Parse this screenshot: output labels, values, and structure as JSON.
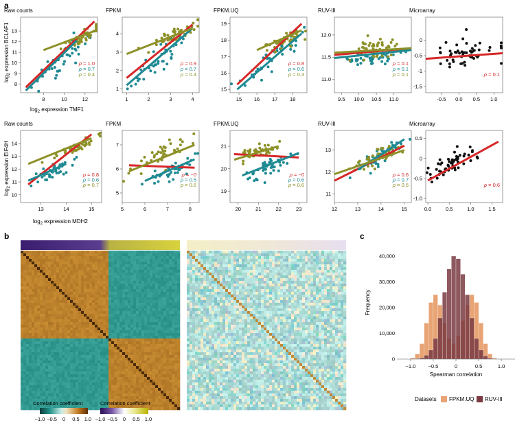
{
  "panel_labels": {
    "a": "a",
    "b": "b",
    "c": "c"
  },
  "colors": {
    "red": "#d62728",
    "teal": "#1f8a93",
    "olive": "#8d9128",
    "black": "#111111",
    "fpkm_uq": "#e8a474",
    "ruv": "#7a3b42"
  },
  "rho_symbol": "ρ",
  "row1_ylabel_main": "log",
  "row1_ylabel_sub": "2",
  "row1_ylabel_rest": " expression BCLAF1",
  "row1_xlabel_main": "log",
  "row1_xlabel_sub": "2",
  "row1_xlabel_rest": " expression TMF1",
  "row2_ylabel_main": "log",
  "row2_ylabel_sub": "2",
  "row2_ylabel_rest": " expression EIF4H",
  "row2_xlabel_main": "log",
  "row2_xlabel_sub": "2",
  "row2_xlabel_rest": " expression MDH2",
  "chart_data": [
    {
      "type": "scatter",
      "panel": "a1",
      "title": "Raw counts",
      "xlim": [
        5.8,
        13.2
      ],
      "ylim": [
        7.2,
        14.3
      ],
      "xticks": [
        "8",
        "10",
        "12"
      ],
      "xtick_vals": [
        8,
        10,
        12
      ],
      "yticks": [
        "8",
        "9",
        "10",
        "11",
        "12",
        "13"
      ],
      "ytick_vals": [
        8,
        9,
        10,
        11,
        12,
        13
      ],
      "series": [
        {
          "name": "red",
          "color": "red",
          "line": [
            [
              6.3,
              7.7
            ],
            [
              12.9,
              13.9
            ]
          ],
          "rho": "= 1.0"
        },
        {
          "name": "teal",
          "color": "teal",
          "line": [
            [
              6.3,
              7.4
            ],
            [
              11.2,
              12.1
            ]
          ],
          "rho": "= 0.7",
          "cloud": {
            "cx": 9.8,
            "cy": 10.4,
            "sx": 1.3,
            "sy": 1.3,
            "slope": 0.95,
            "n": 45
          }
        },
        {
          "name": "olive",
          "color": "olive",
          "line": [
            [
              8.0,
              11.2
            ],
            [
              12.9,
              13.0
            ]
          ],
          "rho": "= 0.4",
          "cloud": {
            "cx": 11.4,
            "cy": 12.2,
            "sx": 0.9,
            "sy": 0.6,
            "slope": 0.5,
            "n": 45
          }
        }
      ]
    },
    {
      "type": "scatter",
      "panel": "a2",
      "title": "FPKM",
      "xlim": [
        0.8,
        4.3
      ],
      "ylim": [
        0.8,
        4.9
      ],
      "xticks": [
        "1",
        "2",
        "3",
        "4"
      ],
      "xtick_vals": [
        1,
        2,
        3,
        4
      ],
      "yticks": [
        "1",
        "2",
        "3",
        "4"
      ],
      "ytick_vals": [
        1,
        2,
        3,
        4
      ],
      "series": [
        {
          "name": "red",
          "color": "red",
          "line": [
            [
              1.0,
              1.6
            ],
            [
              4.0,
              4.5
            ]
          ],
          "rho": "= 0.9"
        },
        {
          "name": "teal",
          "color": "teal",
          "line": [
            [
              1.0,
              1.2
            ],
            [
              4.0,
              4.3
            ]
          ],
          "rho": "= 0.7",
          "cloud": {
            "cx": 2.4,
            "cy": 2.6,
            "sx": 0.7,
            "sy": 0.7,
            "slope": 1.0,
            "n": 45
          }
        },
        {
          "name": "olive",
          "color": "olive",
          "line": [
            [
              1.0,
              2.9
            ],
            [
              4.0,
              4.3
            ]
          ],
          "rho": "= 0.4",
          "cloud": {
            "cx": 3.2,
            "cy": 3.9,
            "sx": 0.6,
            "sy": 0.4,
            "slope": 0.5,
            "n": 45
          }
        }
      ]
    },
    {
      "type": "scatter",
      "panel": "a3",
      "title": "FPKM.UQ",
      "xlim": [
        14.5,
        18.8
      ],
      "ylim": [
        14.8,
        19.4
      ],
      "xticks": [
        "15",
        "16",
        "17",
        "18"
      ],
      "xtick_vals": [
        15,
        16,
        17,
        18
      ],
      "yticks": [
        "15",
        "16",
        "17",
        "18",
        "19"
      ],
      "ytick_vals": [
        15,
        16,
        17,
        18,
        19
      ],
      "series": [
        {
          "name": "red",
          "color": "red",
          "line": [
            [
              14.9,
              15.3
            ],
            [
              18.5,
              19.0
            ]
          ],
          "rho": "= 0.8"
        },
        {
          "name": "teal",
          "color": "teal",
          "line": [
            [
              14.9,
              15.0
            ],
            [
              18.5,
              18.4
            ]
          ],
          "rho": "= 0.6",
          "cloud": {
            "cx": 16.7,
            "cy": 16.8,
            "sx": 0.8,
            "sy": 0.8,
            "slope": 0.9,
            "n": 45
          }
        },
        {
          "name": "olive",
          "color": "olive",
          "line": [
            [
              16.0,
              17.4
            ],
            [
              18.5,
              18.6
            ]
          ],
          "rho": "= 0.3",
          "cloud": {
            "cx": 17.6,
            "cy": 18.0,
            "sx": 0.6,
            "sy": 0.4,
            "slope": 0.4,
            "n": 45
          }
        }
      ]
    },
    {
      "type": "scatter",
      "panel": "a4",
      "title": "RUV-III",
      "xlim": [
        9.3,
        11.5
      ],
      "ylim": [
        10.7,
        12.4
      ],
      "xticks": [
        "9.5",
        "10.0",
        "10.5",
        "11.0"
      ],
      "xtick_vals": [
        9.5,
        10.0,
        10.5,
        11.0
      ],
      "yticks": [
        "11.0",
        "11.5",
        "12.0"
      ],
      "ytick_vals": [
        11.0,
        11.5,
        12.0
      ],
      "series": [
        {
          "name": "red",
          "color": "red",
          "line": [
            [
              9.3,
              11.55
            ],
            [
              11.5,
              11.7
            ]
          ],
          "rho": "= 0.1"
        },
        {
          "name": "teal",
          "color": "teal",
          "line": [
            [
              9.3,
              11.48
            ],
            [
              11.5,
              11.66
            ]
          ],
          "rho": "= 0.1",
          "cloud": {
            "cx": 10.4,
            "cy": 11.5,
            "sx": 0.35,
            "sy": 0.2,
            "slope": 0.1,
            "n": 45
          }
        },
        {
          "name": "olive",
          "color": "olive",
          "line": [
            [
              9.3,
              11.6
            ],
            [
              11.5,
              11.7
            ]
          ],
          "rho": "= 0.1",
          "cloud": {
            "cx": 10.5,
            "cy": 11.7,
            "sx": 0.35,
            "sy": 0.25,
            "slope": 0.1,
            "n": 55
          }
        }
      ]
    },
    {
      "type": "scatter",
      "panel": "a5",
      "title": "Microarray",
      "xlim": [
        -0.95,
        1.25
      ],
      "ylim": [
        -1.7,
        0.75
      ],
      "xticks": [
        "-0.5",
        "0.0",
        "0.5",
        "1.0"
      ],
      "xtick_vals": [
        -0.5,
        0.0,
        0.5,
        1.0
      ],
      "yticks": [
        "-1.5",
        "-1",
        "-0.5",
        "0"
      ],
      "ytick_vals": [
        -1.5,
        -1,
        -0.5,
        0
      ],
      "series": [
        {
          "name": "red",
          "color": "red",
          "line": [
            [
              -0.95,
              -0.6
            ],
            [
              1.25,
              -0.42
            ]
          ],
          "rho": "= 0.1"
        },
        {
          "name": "black",
          "color": "black",
          "cloud": {
            "cx": 0.2,
            "cy": -0.45,
            "sx": 0.4,
            "sy": 0.45,
            "slope": 0.1,
            "n": 55
          }
        }
      ]
    },
    {
      "type": "scatter",
      "panel": "a6",
      "title": "Raw counts",
      "xlim": [
        12.2,
        15.4
      ],
      "ylim": [
        9.4,
        15.0
      ],
      "xticks": [
        "13",
        "14",
        "15"
      ],
      "xtick_vals": [
        13,
        14,
        15
      ],
      "yticks": [
        "10",
        "11",
        "12",
        "13",
        "14"
      ],
      "ytick_vals": [
        10,
        11,
        12,
        13,
        14
      ],
      "series": [
        {
          "name": "red",
          "color": "red",
          "line": [
            [
              12.5,
              10.8
            ],
            [
              15.0,
              14.7
            ]
          ],
          "rho": "= 0.8"
        },
        {
          "name": "teal",
          "color": "teal",
          "line": [
            [
              12.5,
              11.1
            ],
            [
              14.0,
              12.4
            ]
          ],
          "rho": "= 0.6",
          "cloud": {
            "cx": 13.3,
            "cy": 11.6,
            "sx": 0.4,
            "sy": 0.5,
            "slope": 0.9,
            "n": 45
          }
        },
        {
          "name": "olive",
          "color": "olive",
          "line": [
            [
              12.5,
              12.4
            ],
            [
              15.0,
              14.4
            ]
          ],
          "rho": "= 0.7",
          "cloud": {
            "cx": 14.3,
            "cy": 13.6,
            "sx": 0.5,
            "sy": 0.4,
            "slope": 0.8,
            "n": 45
          }
        }
      ]
    },
    {
      "type": "scatter",
      "panel": "a7",
      "title": "FPKM",
      "xlim": [
        5.0,
        8.4
      ],
      "ylim": [
        4.6,
        7.6
      ],
      "xticks": [
        "5",
        "6",
        "7",
        "8"
      ],
      "xtick_vals": [
        5,
        6,
        7,
        8
      ],
      "yticks": [
        "5",
        "6",
        "7"
      ],
      "ytick_vals": [
        5,
        6,
        7
      ],
      "series": [
        {
          "name": "red",
          "color": "red",
          "line": [
            [
              5.3,
              6.15
            ],
            [
              8.2,
              6.05
            ]
          ],
          "rho": "= −0"
        },
        {
          "name": "teal",
          "color": "teal",
          "line": [
            [
              6.0,
              5.5
            ],
            [
              8.2,
              6.4
            ]
          ],
          "rho": "= 0.5",
          "cloud": {
            "cx": 7.2,
            "cy": 5.9,
            "sx": 0.5,
            "sy": 0.35,
            "slope": 0.4,
            "n": 45
          }
        },
        {
          "name": "olive",
          "color": "olive",
          "line": [
            [
              5.3,
              5.9
            ],
            [
              8.2,
              7.0
            ]
          ],
          "rho": "= 0.6",
          "cloud": {
            "cx": 6.8,
            "cy": 6.6,
            "sx": 0.6,
            "sy": 0.4,
            "slope": 0.5,
            "n": 45
          }
        }
      ]
    },
    {
      "type": "scatter",
      "panel": "a8",
      "title": "FPKM.UQ",
      "xlim": [
        19.6,
        23.4
      ],
      "ylim": [
        18.5,
        21.7
      ],
      "xticks": [
        "20",
        "21",
        "22",
        "23"
      ],
      "xtick_vals": [
        20,
        21,
        22,
        23
      ],
      "yticks": [
        "19",
        "20",
        "21"
      ],
      "ytick_vals": [
        19,
        20,
        21
      ],
      "series": [
        {
          "name": "red",
          "color": "red",
          "line": [
            [
              19.8,
              20.65
            ],
            [
              23.0,
              20.5
            ]
          ],
          "rho": "= −0"
        },
        {
          "name": "teal",
          "color": "teal",
          "line": [
            [
              20.2,
              19.7
            ],
            [
              23.0,
              20.7
            ]
          ],
          "rho": "= 0.6",
          "cloud": {
            "cx": 21.5,
            "cy": 20.1,
            "sx": 0.7,
            "sy": 0.4,
            "slope": 0.4,
            "n": 45
          }
        },
        {
          "name": "olive",
          "color": "olive",
          "line": [
            [
              19.8,
              20.4
            ],
            [
              22.0,
              21.0
            ]
          ],
          "rho": "= 0.6",
          "cloud": {
            "cx": 21.2,
            "cy": 20.8,
            "sx": 0.6,
            "sy": 0.3,
            "slope": 0.3,
            "n": 45
          }
        }
      ]
    },
    {
      "type": "scatter",
      "panel": "a9",
      "title": "RUV-III",
      "xlim": [
        12.0,
        15.3
      ],
      "ylim": [
        10.6,
        13.9
      ],
      "xticks": [
        "12",
        "13",
        "14",
        "15"
      ],
      "xtick_vals": [
        12,
        13,
        14,
        15
      ],
      "yticks": [
        "11",
        "12",
        "13"
      ],
      "ytick_vals": [
        11,
        12,
        13
      ],
      "series": [
        {
          "name": "red",
          "color": "red",
          "line": [
            [
              12.0,
              11.6
            ],
            [
              15.0,
              13.2
            ]
          ],
          "rho": "= 0.6"
        },
        {
          "name": "teal",
          "color": "teal",
          "line": [
            [
              13.0,
              12.1
            ],
            [
              15.0,
              13.5
            ]
          ],
          "rho": "= 0.7",
          "cloud": {
            "cx": 14.0,
            "cy": 12.7,
            "sx": 0.5,
            "sy": 0.4,
            "slope": 0.7,
            "n": 45
          }
        },
        {
          "name": "olive",
          "color": "olive",
          "line": [
            [
              12.0,
              11.9
            ],
            [
              15.0,
              13.0
            ]
          ],
          "rho": "= 0.6",
          "cloud": {
            "cx": 13.8,
            "cy": 12.6,
            "sx": 0.6,
            "sy": 0.4,
            "slope": 0.45,
            "n": 50
          }
        }
      ]
    },
    {
      "type": "scatter",
      "panel": "a10",
      "title": "Microarray",
      "xlim": [
        -0.05,
        1.75
      ],
      "ylim": [
        -1.1,
        0.7
      ],
      "xticks": [
        "0.0",
        "0.5",
        "1.0",
        "1.5"
      ],
      "xtick_vals": [
        0.0,
        0.5,
        1.0,
        1.5
      ],
      "yticks": [
        "-1.0",
        "-0.5",
        "0",
        "0.5"
      ],
      "ytick_vals": [
        -1.0,
        -0.5,
        0,
        0.5
      ],
      "series": [
        {
          "name": "red",
          "color": "red",
          "line": [
            [
              0.0,
              -0.55
            ],
            [
              1.65,
              0.42
            ]
          ],
          "rho": "= 0.6"
        },
        {
          "name": "black",
          "color": "black",
          "cloud": {
            "cx": 0.55,
            "cy": -0.1,
            "sx": 0.3,
            "sy": 0.25,
            "slope": 0.5,
            "n": 55
          }
        }
      ]
    },
    {
      "type": "heatmap",
      "panel": "b",
      "colorbars": [
        {
          "title": "Correlation coefficient",
          "ticks": [
            "−1.0",
            "−0.5",
            "0",
            "0.5",
            "1.0"
          ]
        },
        {
          "title": "Correlation coefficient",
          "ticks": [
            "−1.0",
            "−0.5",
            "0",
            "0.5",
            "1.0"
          ]
        }
      ]
    },
    {
      "type": "bar",
      "panel": "c",
      "xlabel": "Spearman correlation",
      "ylabel": "Frequency",
      "xlim": [
        -1.3,
        1.3
      ],
      "ylim": [
        0,
        44000
      ],
      "xticks": [
        "−1.0",
        "−0.5",
        "0",
        "0.5",
        "1.0"
      ],
      "xtick_vals": [
        -1.0,
        -0.5,
        0,
        0.5,
        1.0
      ],
      "yticks": [
        "0",
        "10,000",
        "20,000",
        "30,000",
        "40,000"
      ],
      "ytick_vals": [
        0,
        10000,
        20000,
        30000,
        40000
      ],
      "bin_start": -1.1,
      "bin_width": 0.1,
      "series": [
        {
          "name": "FPKM.UQ",
          "color": "fpkm_uq",
          "values": [
            0,
            500,
            2000,
            6000,
            14000,
            22000,
            25000,
            21000,
            14000,
            8000,
            6000,
            9000,
            15000,
            21000,
            25000,
            22000,
            14000,
            6000,
            2000,
            500,
            0,
            0
          ]
        },
        {
          "name": "RUV-III",
          "color": "ruv",
          "values": [
            0,
            0,
            200,
            500,
            1500,
            3500,
            8000,
            16000,
            26000,
            35000,
            40000,
            39000,
            33000,
            25000,
            16000,
            8000,
            3500,
            1200,
            300,
            100,
            0,
            0
          ]
        }
      ],
      "legend_title": "Datasets",
      "legend": [
        "FPKM.UQ",
        "RUV-III"
      ]
    }
  ]
}
